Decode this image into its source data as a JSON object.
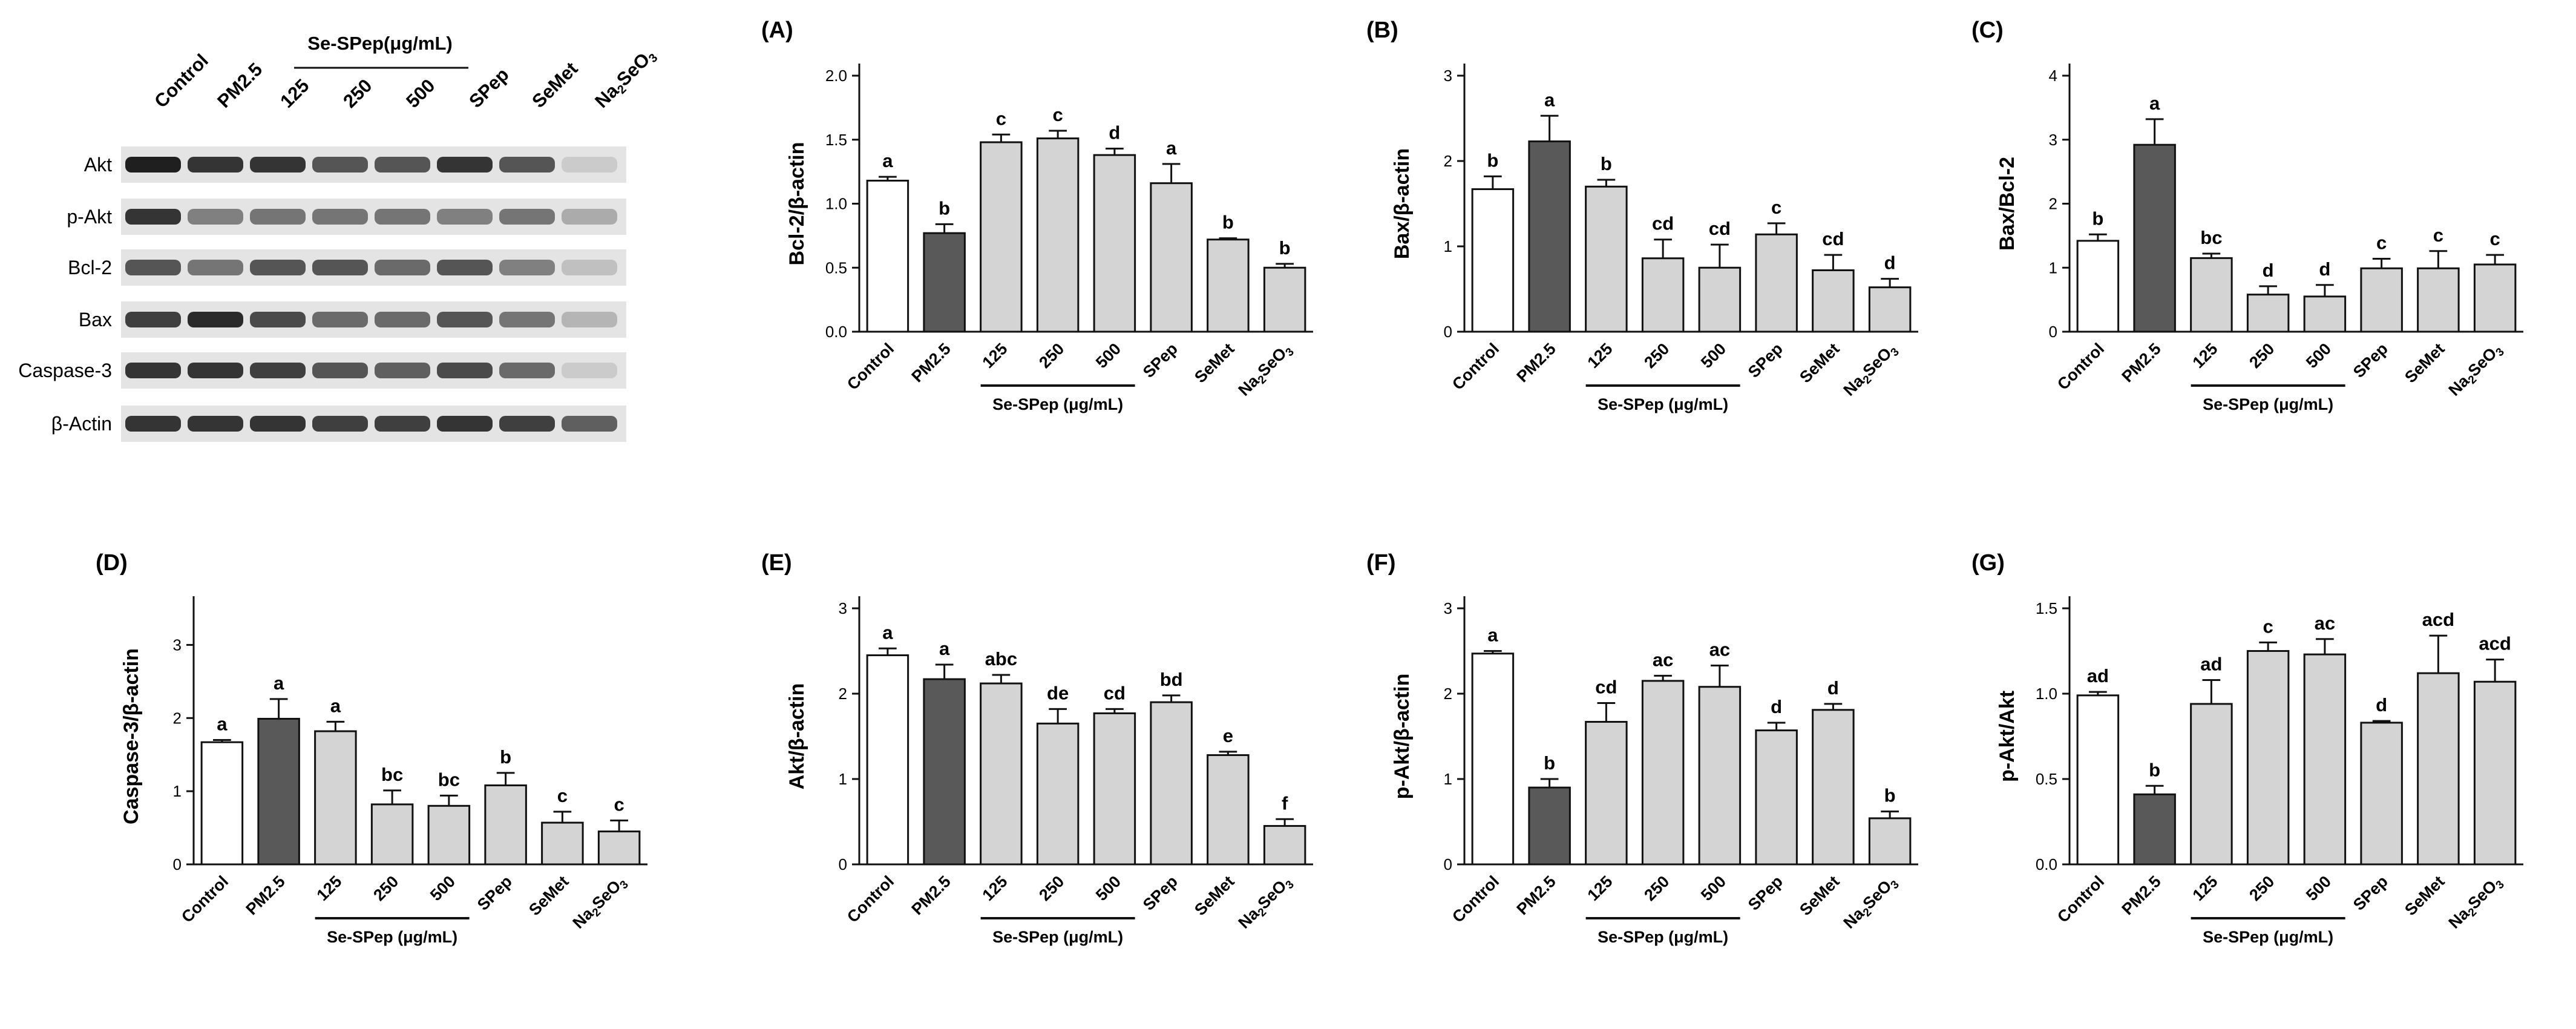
{
  "blot": {
    "lanes": [
      "Control",
      "PM2.5",
      "125",
      "250",
      "500",
      "SPep",
      "SeMet",
      "Na2SeO3"
    ],
    "group_label": "Se-SPep(μg/mL)",
    "proteins": [
      "Akt",
      "p-Akt",
      "Bcl-2",
      "Bax",
      "Caspase-3",
      "β-Actin"
    ]
  },
  "colors": {
    "control": "#ffffff",
    "pm25": "#595959",
    "treatment": "#d4d4d4",
    "axis": "#111111"
  },
  "chart_data": [
    {
      "panel": "(A)",
      "type": "bar",
      "ylabel": "Bcl-2/β-actin",
      "ylim": [
        0,
        2.0
      ],
      "yticks": [
        0.0,
        0.5,
        1.0,
        1.5,
        2.0
      ],
      "tick_decimals": 1,
      "categories": [
        "Control",
        "PM2.5",
        "125",
        "250",
        "500",
        "SPep",
        "SeMet",
        "Na2SeO3"
      ],
      "group_label": "Se-SPep (μg/mL)",
      "values": [
        1.18,
        0.77,
        1.48,
        1.51,
        1.38,
        1.16,
        0.72,
        0.5
      ],
      "errors": [
        0.03,
        0.07,
        0.06,
        0.06,
        0.05,
        0.15,
        0.01,
        0.03
      ],
      "letters": [
        "a",
        "b",
        "c",
        "c",
        "d",
        "a",
        "b",
        "b"
      ]
    },
    {
      "panel": "(B)",
      "type": "bar",
      "ylabel": "Bax/β-actin",
      "ylim": [
        0,
        3
      ],
      "yticks": [
        0,
        1,
        2,
        3
      ],
      "tick_decimals": 0,
      "categories": [
        "Control",
        "PM2.5",
        "125",
        "250",
        "500",
        "SPep",
        "SeMet",
        "Na2SeO3"
      ],
      "group_label": "Se-SPep (μg/mL)",
      "values": [
        1.67,
        2.23,
        1.7,
        0.86,
        0.75,
        1.14,
        0.72,
        0.52
      ],
      "errors": [
        0.15,
        0.3,
        0.08,
        0.22,
        0.27,
        0.13,
        0.18,
        0.1
      ],
      "letters": [
        "b",
        "a",
        "b",
        "cd",
        "cd",
        "c",
        "cd",
        "d"
      ]
    },
    {
      "panel": "(C)",
      "type": "bar",
      "ylabel": "Bax/Bcl-2",
      "ylim": [
        0,
        4
      ],
      "yticks": [
        0,
        1,
        2,
        3,
        4
      ],
      "tick_decimals": 0,
      "categories": [
        "Control",
        "PM2.5",
        "125",
        "250",
        "500",
        "SPep",
        "SeMet",
        "Na2SeO3"
      ],
      "group_label": "Se-SPep (μg/mL)",
      "values": [
        1.42,
        2.92,
        1.15,
        0.58,
        0.55,
        0.99,
        0.99,
        1.05
      ],
      "errors": [
        0.1,
        0.4,
        0.07,
        0.13,
        0.18,
        0.15,
        0.27,
        0.15
      ],
      "letters": [
        "b",
        "a",
        "bc",
        "d",
        "d",
        "c",
        "c",
        "c"
      ]
    },
    {
      "panel": "(D)",
      "type": "bar",
      "ylabel": "Caspase-3/β-actin",
      "ylim": [
        0,
        3.5
      ],
      "yticks": [
        0,
        1,
        2,
        3
      ],
      "tick_decimals": 0,
      "categories": [
        "Control",
        "PM2.5",
        "125",
        "250",
        "500",
        "SPep",
        "SeMet",
        "Na2SeO3"
      ],
      "group_label": "Se-SPep (μg/mL)",
      "values": [
        1.67,
        1.99,
        1.82,
        0.82,
        0.8,
        1.08,
        0.57,
        0.45
      ],
      "errors": [
        0.03,
        0.27,
        0.13,
        0.19,
        0.14,
        0.17,
        0.15,
        0.15
      ],
      "letters": [
        "a",
        "a",
        "a",
        "bc",
        "bc",
        "b",
        "c",
        "c"
      ]
    },
    {
      "panel": "(E)",
      "type": "bar",
      "ylabel": "Akt/β-actin",
      "ylim": [
        0,
        3
      ],
      "yticks": [
        0,
        1,
        2,
        3
      ],
      "tick_decimals": 0,
      "categories": [
        "Control",
        "PM2.5",
        "125",
        "250",
        "500",
        "SPep",
        "SeMet",
        "Na2SeO3"
      ],
      "group_label": "Se-SPep (μg/mL)",
      "values": [
        2.45,
        2.17,
        2.12,
        1.65,
        1.77,
        1.9,
        1.28,
        0.45
      ],
      "errors": [
        0.08,
        0.17,
        0.1,
        0.17,
        0.05,
        0.08,
        0.04,
        0.08
      ],
      "letters": [
        "a",
        "a",
        "abc",
        "de",
        "cd",
        "bd",
        "e",
        "f"
      ]
    },
    {
      "panel": "(F)",
      "type": "bar",
      "ylabel": "p-Akt/β-actin",
      "ylim": [
        0,
        3
      ],
      "yticks": [
        0,
        1,
        2,
        3
      ],
      "tick_decimals": 0,
      "categories": [
        "Control",
        "PM2.5",
        "125",
        "250",
        "500",
        "SPep",
        "SeMet",
        "Na2SeO3"
      ],
      "group_label": "Se-SPep (μg/mL)",
      "values": [
        2.47,
        0.9,
        1.67,
        2.15,
        2.08,
        1.57,
        1.81,
        0.54
      ],
      "errors": [
        0.03,
        0.1,
        0.22,
        0.06,
        0.25,
        0.09,
        0.07,
        0.08
      ],
      "letters": [
        "a",
        "b",
        "cd",
        "ac",
        "ac",
        "d",
        "d",
        "b"
      ]
    },
    {
      "panel": "(G)",
      "type": "bar",
      "ylabel": "p-Akt/Akt",
      "ylim": [
        0,
        1.5
      ],
      "yticks": [
        0.0,
        0.5,
        1.0,
        1.5
      ],
      "tick_decimals": 1,
      "categories": [
        "Control",
        "PM2.5",
        "125",
        "250",
        "500",
        "SPep",
        "SeMet",
        "Na2SeO3"
      ],
      "group_label": "Se-SPep (μg/mL)",
      "values": [
        0.99,
        0.41,
        0.94,
        1.25,
        1.23,
        0.83,
        1.12,
        1.07
      ],
      "errors": [
        0.02,
        0.05,
        0.14,
        0.05,
        0.09,
        0.01,
        0.22,
        0.13
      ],
      "letters": [
        "ad",
        "b",
        "ad",
        "c",
        "ac",
        "d",
        "acd",
        "acd"
      ]
    }
  ]
}
